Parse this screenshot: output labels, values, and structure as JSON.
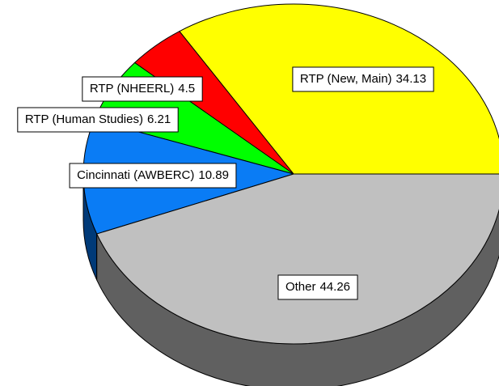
{
  "chart_data": {
    "type": "pie",
    "categories": [
      "RTP (New, Main)",
      "RTP (NHEERL)",
      "RTP (Human Studies)",
      "Cincinnati (AWBERC)",
      "Other"
    ],
    "values": [
      34.13,
      4.5,
      6.21,
      10.89,
      44.26
    ],
    "colors": [
      "#ffff00",
      "#ff0000",
      "#00ff00",
      "#0a7cf5",
      "#c0c0c0"
    ],
    "side_colors": [
      "#8a8a00",
      "#800000",
      "#008000",
      "#003a78",
      "#606060"
    ]
  }
}
